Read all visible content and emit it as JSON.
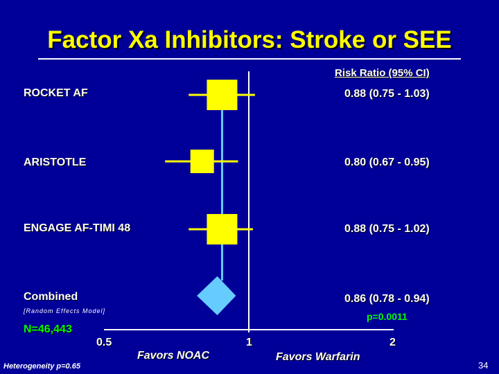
{
  "title": "Factor Xa Inhibitors: Stroke or SEE",
  "column_header": "Risk Ratio (95% CI)",
  "combined_note": "[Random Effects Model]",
  "p_value": "p=0.0011",
  "sample_size": "N=46,443",
  "axis_ticks": [
    "0.5",
    "1",
    "2"
  ],
  "favors_left": "Favors NOAC",
  "favors_right": "Favors Warfarin",
  "heterogeneity": "Heterogeneity p=0.65",
  "page_number": "34",
  "colors": {
    "background": "#000099",
    "title": "#ffff00",
    "study_marker": "#ffff00",
    "combined_marker": "#66ccff",
    "accent_green": "#00ff00"
  },
  "chart_data": {
    "type": "forest",
    "scale": "log",
    "xlim": [
      0.5,
      2
    ],
    "reference_line": 1,
    "rows": [
      {
        "study": "ROCKET AF",
        "rr": 0.88,
        "lo": 0.75,
        "hi": 1.03,
        "ci_text": "0.88 (0.75 - 1.03)",
        "combined": false
      },
      {
        "study": "ARISTOTLE",
        "rr": 0.8,
        "lo": 0.67,
        "hi": 0.95,
        "ci_text": "0.80 (0.67 - 0.95)",
        "combined": false
      },
      {
        "study": "ENGAGE AF-TIMI 48",
        "rr": 0.88,
        "lo": 0.75,
        "hi": 1.02,
        "ci_text": "0.88 (0.75 - 1.02)",
        "combined": false
      },
      {
        "study": "Combined",
        "rr": 0.86,
        "lo": 0.78,
        "hi": 0.94,
        "ci_text": "0.86 (0.78 - 0.94)",
        "combined": true
      }
    ]
  }
}
